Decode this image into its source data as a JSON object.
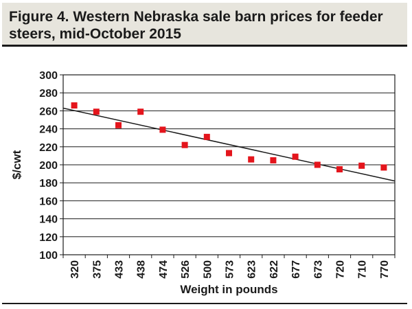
{
  "figure": {
    "title": "Figure 4. Western Nebraska sale barn prices for feeder steers, mid-October 2015"
  },
  "colors": {
    "title_background": "#e7e5dd",
    "marker": "#e4151c",
    "trendline": "#1a1a1a",
    "gridline": "#1a1a1a"
  },
  "chart_data": {
    "type": "scatter",
    "title": "Figure 4. Western Nebraska sale barn prices for feeder steers, mid-October 2015",
    "xlabel": "Weight in pounds",
    "ylabel": "$/cwt",
    "categories": [
      "320",
      "375",
      "433",
      "438",
      "474",
      "526",
      "500",
      "573",
      "623",
      "622",
      "677",
      "673",
      "720",
      "710",
      "770"
    ],
    "series": [
      {
        "values": [
          266,
          259,
          244,
          259,
          239,
          222,
          231,
          213,
          206,
          205,
          209,
          200,
          195,
          199,
          197
        ]
      }
    ],
    "trendline": {
      "type": "linear",
      "start": 263,
      "end": 182
    },
    "ylim": [
      100,
      300
    ],
    "y_ticks": [
      100,
      120,
      140,
      160,
      180,
      200,
      220,
      240,
      260,
      280,
      300
    ],
    "grid": true,
    "legend": "none"
  }
}
